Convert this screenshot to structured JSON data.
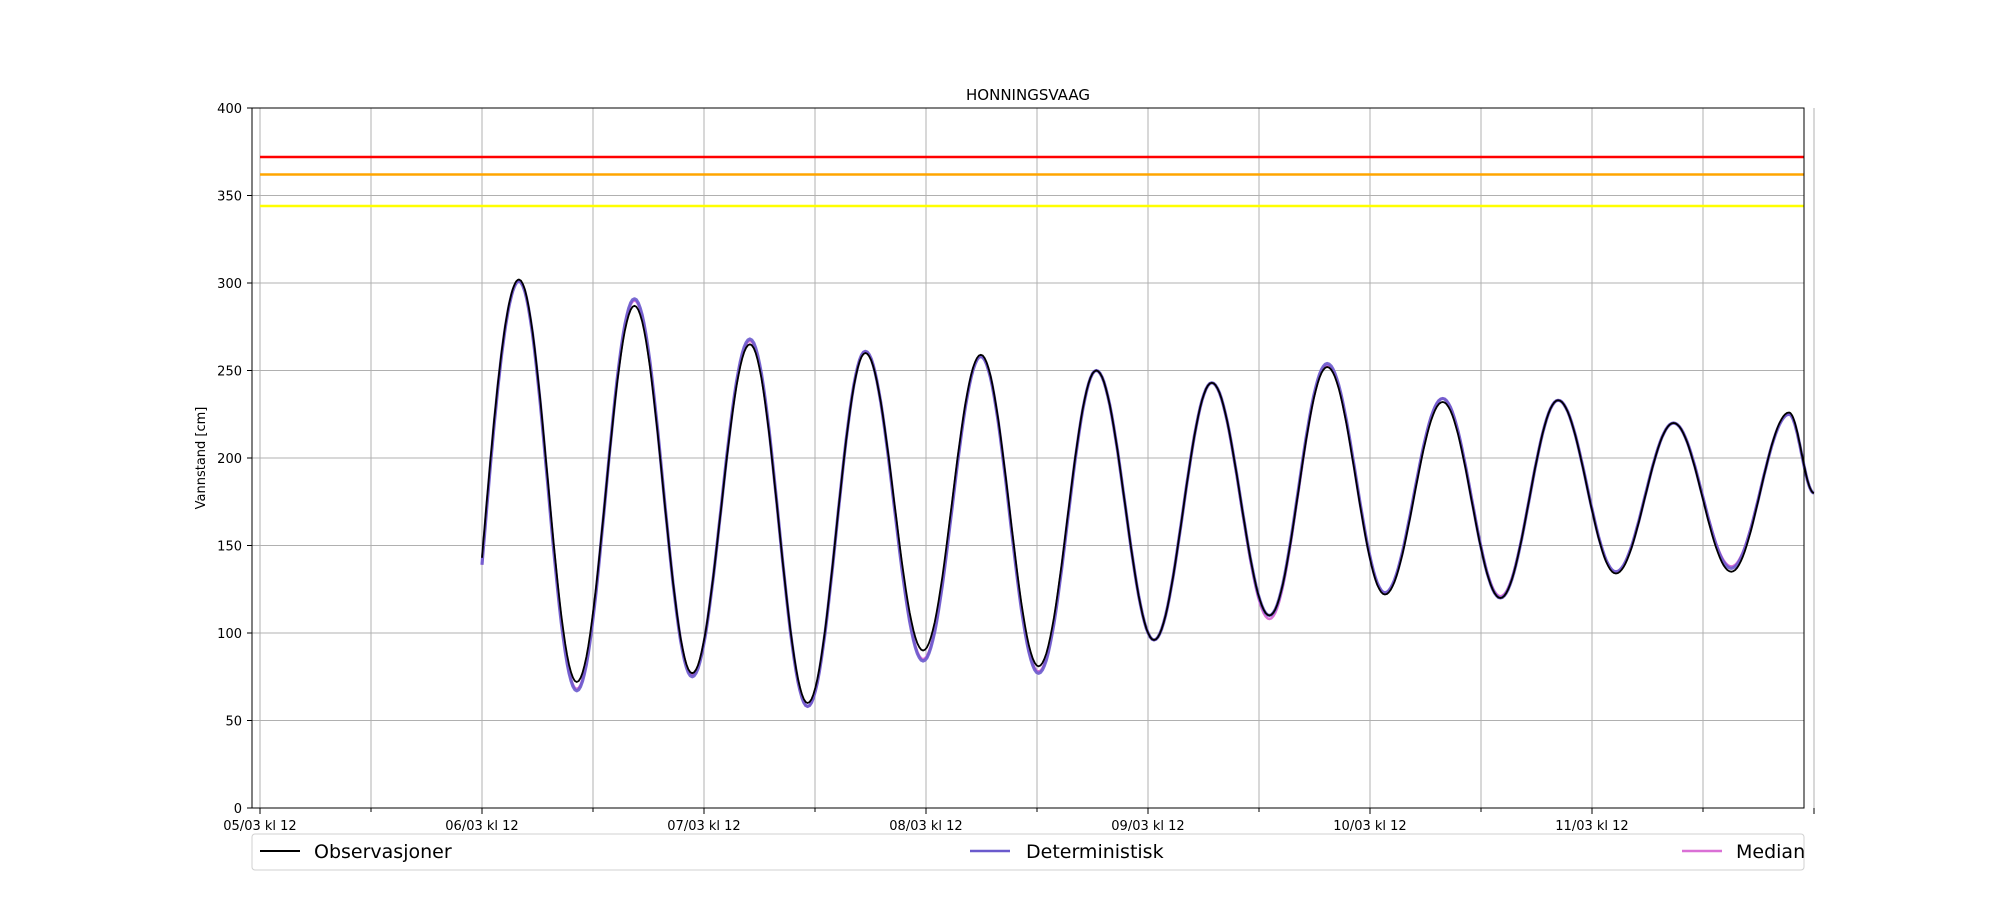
{
  "chart_data": {
    "type": "line",
    "title": "HONNINGSVAAG",
    "ylabel": "Vannstand [cm]",
    "xlabel": "",
    "ylim": [
      0,
      400
    ],
    "yticks": [
      0,
      50,
      100,
      150,
      200,
      250,
      300,
      350,
      400
    ],
    "x_range_hours": [
      0,
      168
    ],
    "x_tick_labels": [
      "05/03 kl 12",
      "06/03 kl 12",
      "07/03 kl 12",
      "08/03 kl 12",
      "09/03 kl 12",
      "10/03 kl 12",
      "11/03 kl 12"
    ],
    "grid": true,
    "legend_position": "bottom",
    "thresholds": [
      {
        "value": 372,
        "color": "#ff0000"
      },
      {
        "value": 362,
        "color": "#ffa500"
      },
      {
        "value": 344,
        "color": "#ffff00"
      }
    ],
    "series_start": "06/03 kl 12",
    "extremes": {
      "observed": [
        143,
        302,
        72,
        287,
        77,
        265,
        60,
        260,
        90,
        259,
        81,
        250,
        96,
        243,
        110,
        252,
        122,
        232,
        120,
        233,
        134,
        220,
        135,
        226,
        180
      ],
      "deterministic": [
        139,
        301,
        67,
        291,
        75,
        268,
        58,
        261,
        84,
        258,
        77,
        250,
        96,
        243,
        110,
        254,
        123,
        234,
        120,
        233,
        135,
        220,
        137,
        225,
        180
      ],
      "median": [
        139,
        301,
        68,
        290,
        76,
        267,
        58,
        261,
        85,
        258,
        78,
        250,
        96,
        243,
        108,
        253,
        123,
        234,
        121,
        233,
        135,
        220,
        138,
        225,
        180
      ]
    },
    "series": [
      {
        "name": "Observasjoner",
        "color": "#000000"
      },
      {
        "name": "Deterministisk",
        "color": "#6a5acd"
      },
      {
        "name": "Median",
        "color": "#da70d6"
      }
    ]
  }
}
